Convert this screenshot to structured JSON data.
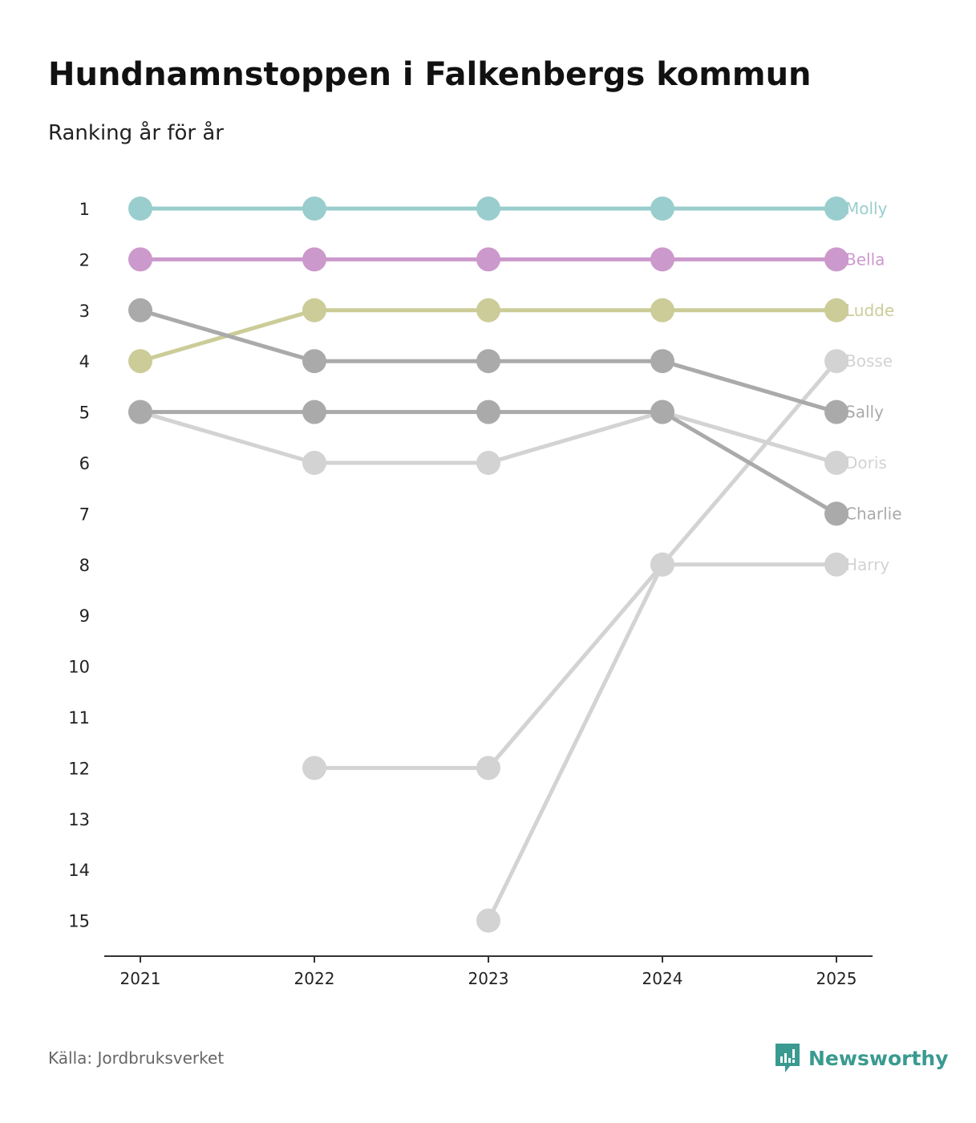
{
  "title": "Hundnamnstoppen i Falkenbergs kommun",
  "subtitle": "Ranking år för år",
  "source": "Källa: Jordbruksverket",
  "brand": "Newsworthy",
  "colors": {
    "brand": "#3a9a90"
  },
  "chart_data": {
    "type": "line",
    "title": "Hundnamnstoppen i Falkenbergs kommun",
    "subtitle": "Ranking år för år",
    "x": [
      "2021",
      "2022",
      "2023",
      "2024",
      "2025"
    ],
    "y_ticks": [
      "1",
      "2",
      "3",
      "4",
      "5",
      "6",
      "7",
      "8",
      "9",
      "10",
      "11",
      "12",
      "13",
      "14",
      "15"
    ],
    "ylim": [
      1,
      15
    ],
    "y_inverted": true,
    "xlabel": "",
    "ylabel": "",
    "series": [
      {
        "name": "Molly",
        "color": "#9acdcd",
        "values": [
          1,
          1,
          1,
          1,
          1
        ]
      },
      {
        "name": "Bella",
        "color": "#cc99cc",
        "values": [
          2,
          2,
          2,
          2,
          2
        ]
      },
      {
        "name": "Ludde",
        "color": "#cccc99",
        "values": [
          4,
          3,
          3,
          3,
          3
        ]
      },
      {
        "name": "Bosse",
        "color": "#d3d3d3",
        "values": [
          null,
          null,
          15,
          8,
          4
        ]
      },
      {
        "name": "Sally",
        "color": "#aaaaaa",
        "values": [
          3,
          4,
          4,
          4,
          5
        ]
      },
      {
        "name": "Doris",
        "color": "#d3d3d3",
        "values": [
          5,
          6,
          6,
          5,
          6
        ]
      },
      {
        "name": "Charlie",
        "color": "#aaaaaa",
        "values": [
          5,
          5,
          5,
          5,
          7
        ]
      },
      {
        "name": "Harry",
        "color": "#d3d3d3",
        "values": [
          null,
          12,
          12,
          8,
          8
        ]
      }
    ]
  }
}
